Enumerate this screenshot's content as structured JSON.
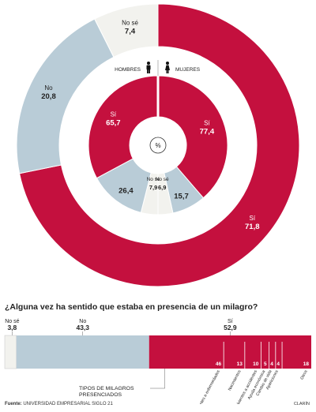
{
  "colors": {
    "si": "#c4103e",
    "no": "#b9ccd7",
    "nose": "#f2f2ee",
    "text_dark": "#222222",
    "text_light": "#ffffff"
  },
  "chart_data": [
    {
      "type": "pie",
      "subtype": "nested-donut",
      "rings": [
        {
          "name": "",
          "slices": [
            {
              "label": "Sí",
              "value_label": "71,8",
              "value": 71.8
            },
            {
              "label": "No",
              "value_label": "20,8",
              "value": 20.8
            },
            {
              "label": "No sé",
              "value_label": "7,4",
              "value": 7.4
            }
          ]
        },
        {
          "name": "MUJERES",
          "slices": [
            {
              "label": "Sí",
              "value_label": "77,4",
              "value": 77.4
            },
            {
              "label": "",
              "value_label": "15,7",
              "value": 15.7
            },
            {
              "label": "No sé",
              "value_label": "6,9",
              "value": 6.9
            }
          ]
        },
        {
          "name": "HOMBRES",
          "slices": [
            {
              "label": "No sé",
              "value_label": "7,9",
              "value": 7.9
            },
            {
              "label": "",
              "value_label": "26,4",
              "value": 26.4
            },
            {
              "label": "Sí",
              "value_label": "65,7",
              "value": 65.7
            }
          ]
        }
      ],
      "legend": [
        "HOMBRES",
        "MUJERES"
      ],
      "center_label": "%"
    },
    {
      "type": "bar",
      "subtype": "stacked-horizontal",
      "title": "¿Alguna vez ha sentido que estaba en presencia de un milagro?",
      "segments": [
        {
          "label": "No sé",
          "value_label": "3,8",
          "value": 3.8
        },
        {
          "label": "No",
          "value_label": "43,3",
          "value": 43.3
        },
        {
          "label": "Sí",
          "value_label": "52,9",
          "value": 52.9
        }
      ],
      "sub_breakdown": {
        "title": "TIPOS DE MILAGROS PRESENCIADOS",
        "items": [
          {
            "label": "Sobrevivientes a enfermedades",
            "value_label": "46",
            "value": 46
          },
          {
            "label": "Nacimientos",
            "value_label": "13",
            "value": 13
          },
          {
            "label": "Sobrevivientes a accidentes",
            "value_label": "10",
            "value": 10
          },
          {
            "label": "Ayuda económica",
            "value_label": "5",
            "value": 5
          },
          {
            "label": "Cambio de vida",
            "value_label": "4",
            "value": 4
          },
          {
            "label": "Apariciones",
            "value_label": "4",
            "value": 4
          },
          {
            "label": "Otros",
            "value_label": "18",
            "value": 18
          }
        ]
      }
    }
  ],
  "footer": {
    "source_prefix": "Fuente:",
    "source_text": "UNIVERSIDAD EMPRESARIAL SIGLO 21",
    "credit": "CLARÍN"
  }
}
